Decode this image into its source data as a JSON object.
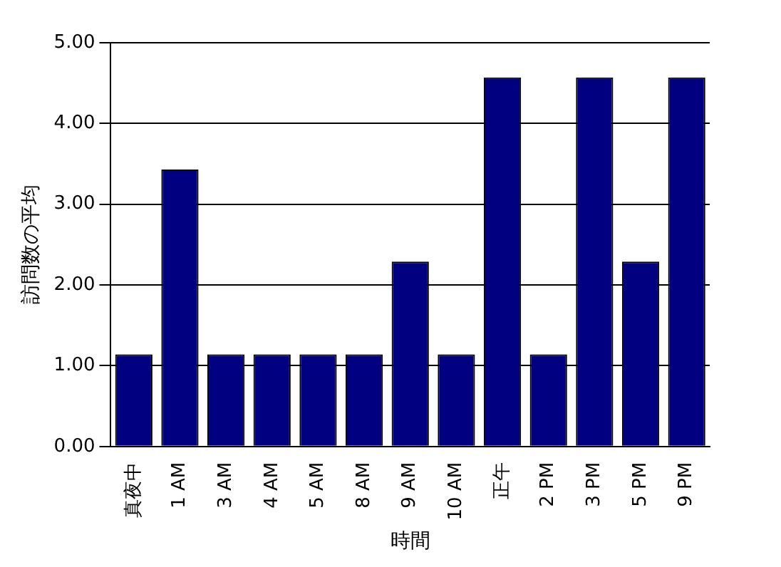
{
  "chart_data": {
    "type": "bar",
    "xlabel": "時間",
    "ylabel": "訪問数の平均",
    "categories": [
      "真夜中",
      "1 AM",
      "3 AM",
      "4 AM",
      "5 AM",
      "8 AM",
      "9 AM",
      "10 AM",
      "正午",
      "2 PM",
      "3 PM",
      "5 PM",
      "9 PM"
    ],
    "values": [
      1.14,
      3.43,
      1.14,
      1.14,
      1.14,
      1.14,
      2.29,
      1.14,
      4.57,
      1.14,
      4.57,
      2.29,
      4.57
    ],
    "color": "#000080",
    "ylim": [
      0,
      5
    ],
    "yticks": [
      {
        "value": 0,
        "label": "0.00"
      },
      {
        "value": 1,
        "label": "1.00"
      },
      {
        "value": 2,
        "label": "2.00"
      },
      {
        "value": 3,
        "label": "3.00"
      },
      {
        "value": 4,
        "label": "4.00"
      },
      {
        "value": 5,
        "label": "5.00"
      }
    ],
    "grid": "y",
    "legend": false
  }
}
